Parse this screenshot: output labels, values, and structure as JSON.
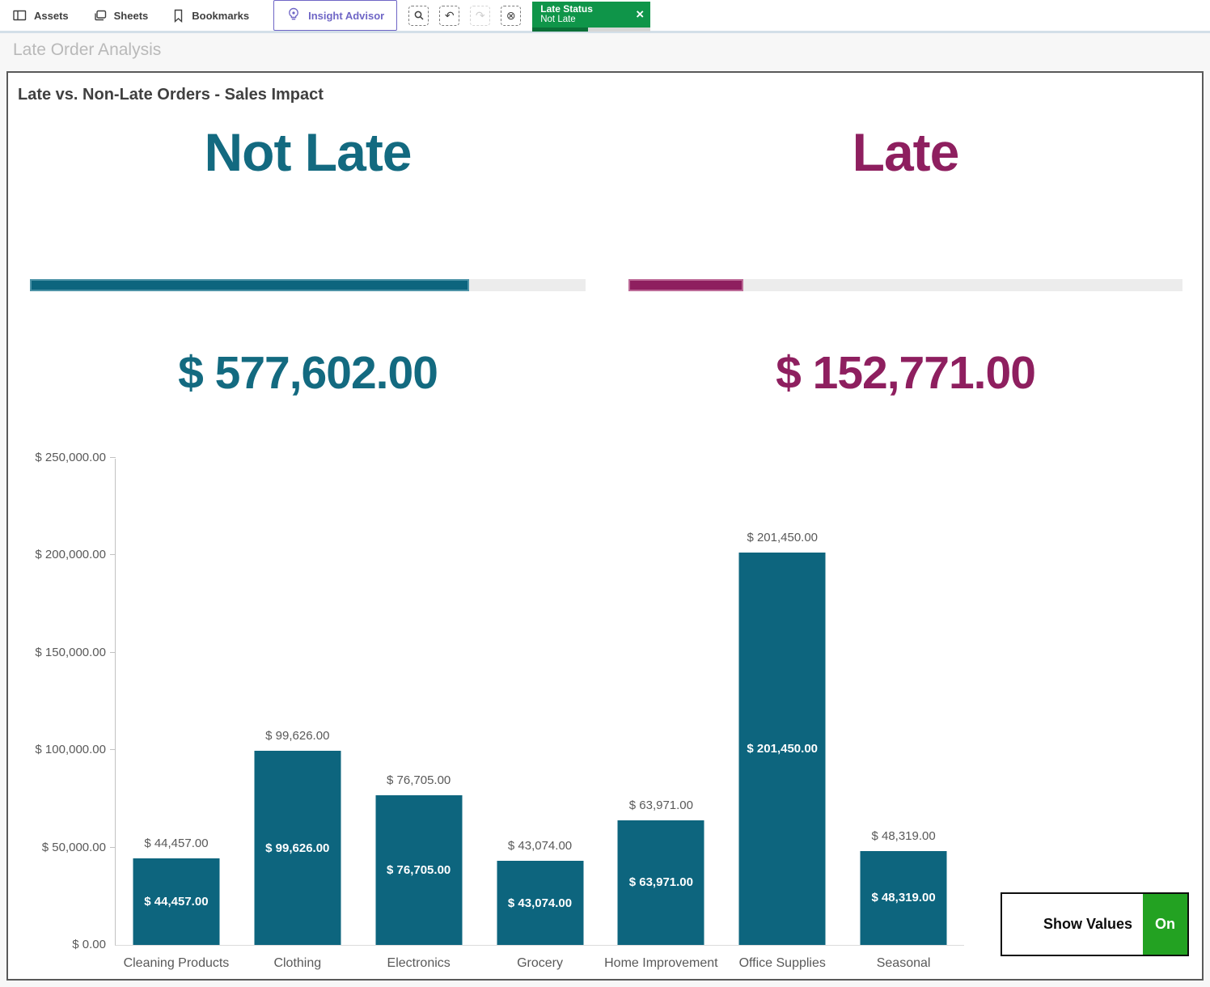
{
  "toolbar": {
    "assets_label": "Assets",
    "sheets_label": "Sheets",
    "bookmarks_label": "Bookmarks",
    "insight_advisor_label": "Insight Advisor",
    "insight_advisor_color": "#6f66c6",
    "selection_tools": [
      "smart-search",
      "step-back",
      "step-forward",
      "clear-all-selections"
    ],
    "selection_chip": {
      "field": "Late Status",
      "value": "Not Late",
      "background_color": "#0f9549",
      "strip_selected_ratio": 0.47,
      "close_icon": "×"
    }
  },
  "sheet_title": "Late Order Analysis",
  "card": {
    "title": "Late vs. Non-Late Orders - Sales Impact"
  },
  "kpis": [
    {
      "label": "Not Late",
      "value": "$ 577,602.00",
      "color": "#136a80",
      "bar_color": "#0d657e",
      "bar_border": "#4d93a7",
      "progress": 0.791
    },
    {
      "label": "Late",
      "value": "$ 152,771.00",
      "color": "#8e1f5f",
      "bar_color": "#8e1f5f",
      "bar_border": "#bc6a97",
      "progress": 0.207
    }
  ],
  "chart_data": {
    "type": "bar",
    "title": "Late vs. Non-Late Orders - Sales Impact",
    "categories": [
      "Cleaning Products",
      "Clothing",
      "Electronics",
      "Grocery",
      "Home Improvement",
      "Office Supplies",
      "Seasonal"
    ],
    "values": [
      44457,
      99626,
      76705,
      43074,
      63971,
      201450,
      48319
    ],
    "value_labels": [
      "$ 44,457.00",
      "$ 99,626.00",
      "$ 76,705.00",
      "$ 43,074.00",
      "$ 63,971.00",
      "$ 201,450.00",
      "$ 48,319.00"
    ],
    "y_ticks": [
      {
        "value": 0,
        "label": "$ 0.00"
      },
      {
        "value": 50000,
        "label": "$ 50,000.00"
      },
      {
        "value": 100000,
        "label": "$ 100,000.00"
      },
      {
        "value": 150000,
        "label": "$ 150,000.00"
      },
      {
        "value": 200000,
        "label": "$ 200,000.00"
      },
      {
        "value": 250000,
        "label": "$ 250,000.00"
      }
    ],
    "ylim": [
      0,
      250000
    ],
    "xlabel": "",
    "ylabel": "",
    "bar_color": "#0d657e",
    "grid": false,
    "legend": "none",
    "data_labels": "above and inside bars"
  },
  "toggle": {
    "label": "Show Values",
    "state": "On",
    "state_color": "#23a222"
  }
}
